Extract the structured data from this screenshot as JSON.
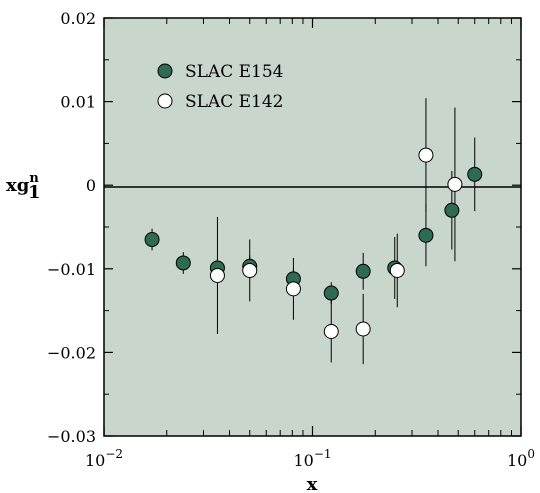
{
  "chart_data": {
    "type": "scatter",
    "xlabel": "x",
    "ylabel": "xg",
    "ylabel_sup": "n",
    "ylabel_sub": "1",
    "x_scale": "log",
    "xlim": [
      0.01,
      1
    ],
    "ylim": [
      -0.03,
      0.02
    ],
    "y_ticks": [
      -0.03,
      -0.02,
      -0.01,
      0,
      0.01,
      0.02
    ],
    "y_tick_labels": [
      "−0.03",
      "−0.02",
      "−0.01",
      "0",
      "0.01",
      "0.02"
    ],
    "x_ticks": [
      {
        "value": 0.01,
        "base": "10",
        "exp": "−2"
      },
      {
        "value": 0.1,
        "base": "10",
        "exp": "−1"
      },
      {
        "value": 1,
        "base": "10",
        "exp": "0"
      }
    ],
    "grid": false,
    "zero_line": true,
    "background_color": "#c9d6cc",
    "legend_position": "top-left",
    "series": [
      {
        "name": "SLAC E154",
        "marker": "filled-circle",
        "color": "#2e6b52",
        "points": [
          {
            "x": 0.017,
            "y": -0.0065,
            "err": 0.0013
          },
          {
            "x": 0.024,
            "y": -0.0093,
            "err": 0.0013
          },
          {
            "x": 0.035,
            "y": -0.0099,
            "err": 0.0011
          },
          {
            "x": 0.05,
            "y": -0.0097,
            "err": 0.0013
          },
          {
            "x": 0.081,
            "y": -0.0112,
            "err": 0.0012
          },
          {
            "x": 0.123,
            "y": -0.0129,
            "err": 0.0013
          },
          {
            "x": 0.175,
            "y": -0.0103,
            "err": 0.0022
          },
          {
            "x": 0.248,
            "y": -0.0099,
            "err": 0.0037
          },
          {
            "x": 0.35,
            "y": -0.006,
            "err": 0.0037
          },
          {
            "x": 0.466,
            "y": -0.003,
            "err": 0.0047
          },
          {
            "x": 0.6,
            "y": 0.0013,
            "err": 0.0044
          }
        ]
      },
      {
        "name": "SLAC E142",
        "marker": "open-circle",
        "color": "#ffffff",
        "points": [
          {
            "x": 0.035,
            "y": -0.0108,
            "err": 0.007
          },
          {
            "x": 0.05,
            "y": -0.0102,
            "err": 0.0037
          },
          {
            "x": 0.081,
            "y": -0.0124,
            "err": 0.0037
          },
          {
            "x": 0.123,
            "y": -0.0175,
            "err": 0.0037
          },
          {
            "x": 0.175,
            "y": -0.0172,
            "err": 0.0042
          },
          {
            "x": 0.255,
            "y": -0.0102,
            "err": 0.0044
          },
          {
            "x": 0.35,
            "y": 0.0036,
            "err": 0.0068
          },
          {
            "x": 0.482,
            "y": 0.0001,
            "err": 0.0092
          }
        ]
      }
    ]
  }
}
